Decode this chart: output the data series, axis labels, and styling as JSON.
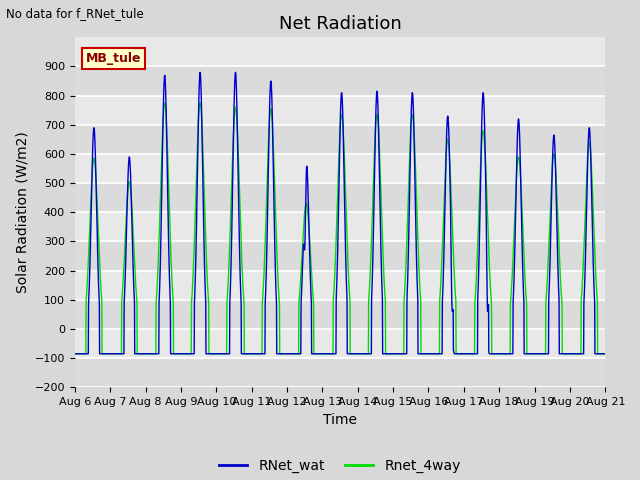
{
  "title": "Net Radiation",
  "xlabel": "Time",
  "ylabel": "Solar Radiation (W/m2)",
  "no_data_text": "No data for f_RNet_tule",
  "legend_label_box": "MB_tule",
  "legend_entries": [
    "RNet_wat",
    "Rnet_4way"
  ],
  "legend_colors": [
    "#0000cc",
    "#00dd00"
  ],
  "ylim": [
    -200,
    1000
  ],
  "yticks": [
    -200,
    -100,
    0,
    100,
    200,
    300,
    400,
    500,
    600,
    700,
    800,
    900
  ],
  "background_color": "#d8d8d8",
  "plot_bg_color": "#e8e8e8",
  "grid_color": "#ffffff",
  "n_days": 15,
  "start_day": 6,
  "title_fontsize": 13,
  "label_fontsize": 10,
  "tick_fontsize": 8,
  "blue_peaks": [
    690,
    590,
    870,
    880,
    880,
    850,
    590,
    810,
    815,
    810,
    730,
    810,
    720,
    665,
    690
  ],
  "green_peaks": [
    585,
    505,
    775,
    775,
    760,
    755,
    430,
    735,
    735,
    735,
    650,
    680,
    590,
    600,
    640
  ],
  "night_val": -85,
  "blue_color": "#0000cc",
  "green_color": "#00dd00"
}
